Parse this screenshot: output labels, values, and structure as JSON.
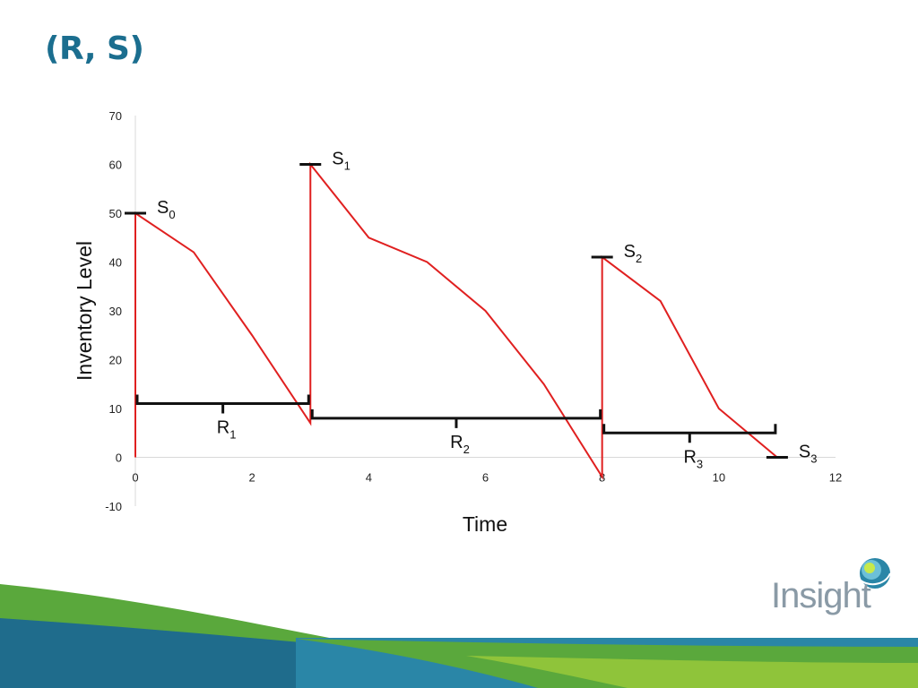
{
  "slide": {
    "title": "(R, S)",
    "title_color": "#1b6e8f"
  },
  "logo": {
    "text": "Insight",
    "icon": "insight-globe-icon",
    "text_color": "#8a9aa6"
  },
  "decor": {
    "wave_colors": [
      "#1f6c8c",
      "#5aa83c",
      "#8fc43a",
      "#2a86a7"
    ]
  },
  "chart_data": {
    "type": "line",
    "xlabel": "Time",
    "ylabel": "Inventory Level",
    "xlim": [
      0,
      12
    ],
    "ylim": [
      -10,
      70
    ],
    "x_ticks": [
      0,
      2,
      4,
      6,
      8,
      10,
      12
    ],
    "y_ticks": [
      -10,
      0,
      10,
      20,
      30,
      40,
      50,
      60,
      70
    ],
    "grid": false,
    "line_color": "#e02020",
    "series": [
      {
        "points": [
          [
            0,
            0
          ],
          [
            0,
            50
          ],
          [
            1,
            42
          ],
          [
            2,
            25
          ],
          [
            3,
            7
          ],
          [
            3,
            60
          ],
          [
            4,
            45
          ],
          [
            5,
            40
          ],
          [
            6,
            30
          ],
          [
            7,
            15
          ],
          [
            8,
            -4
          ],
          [
            8,
            41
          ],
          [
            9,
            32
          ],
          [
            10,
            10
          ],
          [
            11,
            0
          ]
        ]
      }
    ],
    "order_up_to_levels": [
      {
        "base": "S",
        "sub": "0",
        "x": 0,
        "y": 50
      },
      {
        "base": "S",
        "sub": "1",
        "x": 3,
        "y": 60
      },
      {
        "base": "S",
        "sub": "2",
        "x": 8,
        "y": 41
      },
      {
        "base": "S",
        "sub": "3",
        "x": 11,
        "y": 0
      }
    ],
    "review_periods": [
      {
        "base": "R",
        "sub": "1",
        "x_start": 0,
        "x_end": 3,
        "y": 11
      },
      {
        "base": "R",
        "sub": "2",
        "x_start": 3,
        "x_end": 8,
        "y": 8
      },
      {
        "base": "R",
        "sub": "3",
        "x_start": 8,
        "x_end": 11,
        "y": 5
      }
    ]
  }
}
